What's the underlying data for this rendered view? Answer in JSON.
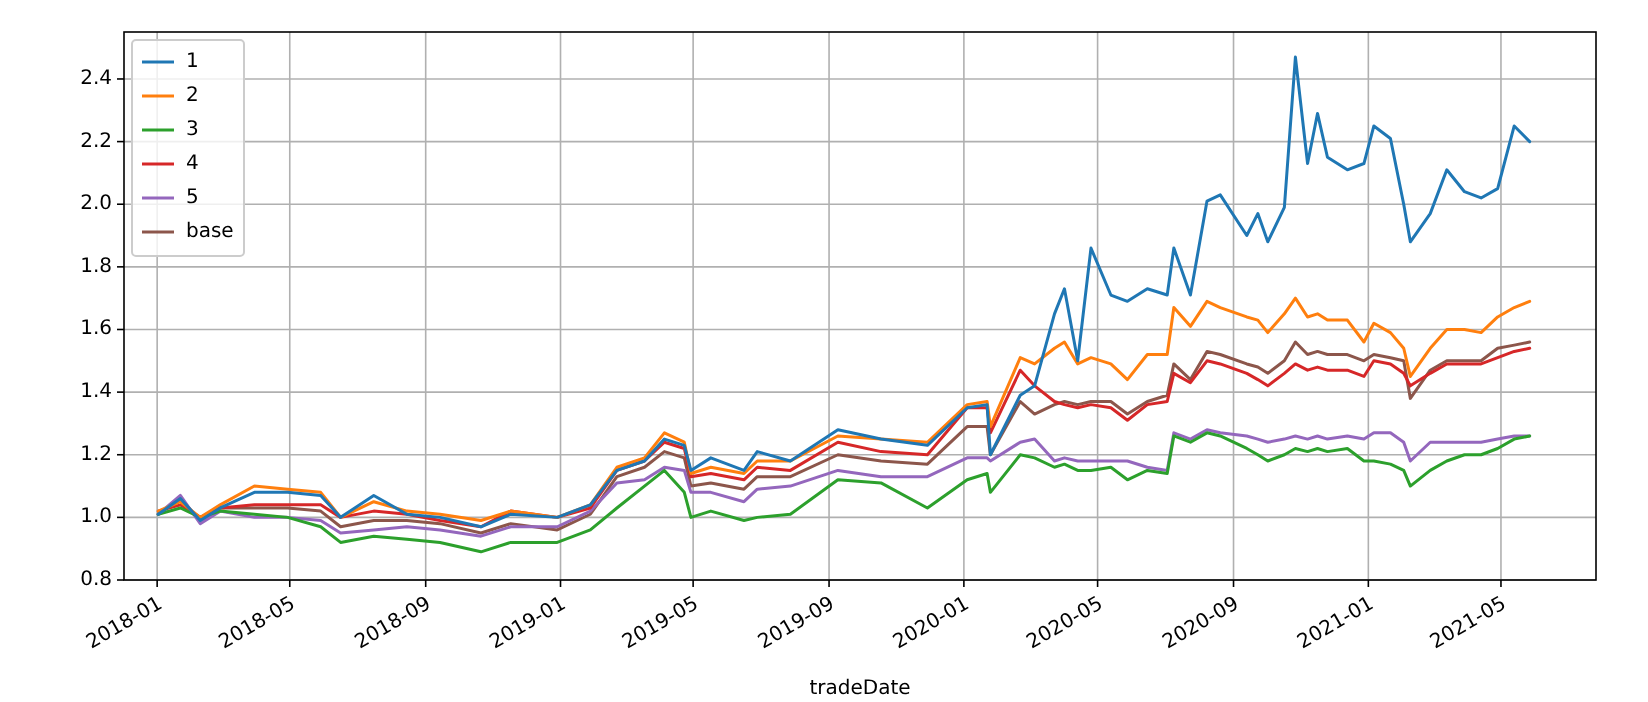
{
  "chart_data": {
    "type": "line",
    "xlabel": "tradeDate",
    "legend": "top left",
    "grid": true,
    "xlim": [
      "2017-12-02",
      "2021-07-26"
    ],
    "ylim": [
      0.8,
      2.55
    ],
    "xticks": [
      "2018-01",
      "2018-05",
      "2018-09",
      "2019-01",
      "2019-05",
      "2019-09",
      "2020-01",
      "2020-05",
      "2020-09",
      "2021-01",
      "2021-05"
    ],
    "yticks": [
      0.8,
      {
        "value": 1,
        "label": "1.0"
      },
      1.2,
      1.4,
      1.6,
      1.8,
      {
        "value": 2,
        "label": "2.0"
      },
      2.2,
      2.4
    ],
    "x": [
      "2018-01-02",
      "2018-01-22",
      "2018-02-09",
      "2018-02-27",
      "2018-03-30",
      "2018-04-29",
      "2018-05-29",
      "2018-06-16",
      "2018-07-16",
      "2018-08-15",
      "2018-09-14",
      "2018-10-21",
      "2018-11-17",
      "2018-12-29",
      "2019-01-28",
      "2019-02-21",
      "2019-03-18",
      "2019-04-05",
      "2019-04-23",
      "2019-04-29",
      "2019-05-17",
      "2019-06-16",
      "2019-06-28",
      "2019-07-28",
      "2019-09-09",
      "2019-10-18",
      "2019-11-29",
      "2020-01-04",
      "2020-01-22",
      "2020-01-25",
      "2020-02-21",
      "2020-03-05",
      "2020-03-23",
      "2020-04-01",
      "2020-04-13",
      "2020-04-25",
      "2020-05-13",
      "2020-05-28",
      "2020-06-15",
      "2020-07-03",
      "2020-07-09",
      "2020-07-24",
      "2020-08-08",
      "2020-08-20",
      "2020-09-13",
      "2020-09-23",
      "2020-10-02",
      "2020-10-17",
      "2020-10-27",
      "2020-11-07",
      "2020-11-16",
      "2020-11-25",
      "2020-12-13",
      "2020-12-28",
      "2021-01-06",
      "2021-01-21",
      "2021-02-02",
      "2021-02-08",
      "2021-02-26",
      "2021-03-13",
      "2021-03-29",
      "2021-04-13",
      "2021-04-28",
      "2021-05-13",
      "2021-05-27"
    ],
    "series": [
      {
        "name": "1",
        "color": "#1f77b4",
        "values": [
          1.01,
          1.06,
          0.99,
          1.03,
          1.08,
          1.08,
          1.07,
          1.0,
          1.07,
          1.01,
          1.0,
          0.97,
          1.01,
          1.0,
          1.04,
          1.15,
          1.18,
          1.25,
          1.23,
          1.15,
          1.19,
          1.15,
          1.21,
          1.18,
          1.28,
          1.25,
          1.23,
          1.35,
          1.36,
          1.2,
          1.39,
          1.42,
          1.65,
          1.73,
          1.5,
          1.86,
          1.71,
          1.69,
          1.73,
          1.71,
          1.86,
          1.71,
          2.01,
          2.03,
          1.9,
          1.97,
          1.88,
          1.99,
          2.47,
          2.13,
          2.29,
          2.15,
          2.11,
          2.13,
          2.25,
          2.21,
          2.0,
          1.88,
          1.97,
          2.11,
          2.04,
          2.02,
          2.05,
          2.25,
          2.2
        ]
      },
      {
        "name": "2",
        "color": "#ff7f0e",
        "values": [
          1.02,
          1.05,
          1.0,
          1.04,
          1.1,
          1.09,
          1.08,
          1.0,
          1.05,
          1.02,
          1.01,
          0.99,
          1.02,
          1.0,
          1.04,
          1.16,
          1.19,
          1.27,
          1.24,
          1.14,
          1.16,
          1.14,
          1.18,
          1.18,
          1.26,
          1.25,
          1.24,
          1.36,
          1.37,
          1.29,
          1.51,
          1.49,
          1.54,
          1.56,
          1.49,
          1.51,
          1.49,
          1.44,
          1.52,
          1.52,
          1.67,
          1.61,
          1.69,
          1.67,
          1.64,
          1.63,
          1.59,
          1.65,
          1.7,
          1.64,
          1.65,
          1.63,
          1.63,
          1.56,
          1.62,
          1.59,
          1.54,
          1.45,
          1.54,
          1.6,
          1.6,
          1.59,
          1.64,
          1.67,
          1.69
        ]
      },
      {
        "name": "3",
        "color": "#2ca02c",
        "values": [
          1.01,
          1.03,
          1.0,
          1.02,
          1.01,
          1.0,
          0.97,
          0.92,
          0.94,
          0.93,
          0.92,
          0.89,
          0.92,
          0.92,
          0.96,
          1.03,
          1.1,
          1.15,
          1.08,
          1.0,
          1.02,
          0.99,
          1.0,
          1.01,
          1.12,
          1.11,
          1.03,
          1.12,
          1.14,
          1.08,
          1.2,
          1.19,
          1.16,
          1.17,
          1.15,
          1.15,
          1.16,
          1.12,
          1.15,
          1.14,
          1.26,
          1.24,
          1.27,
          1.26,
          1.22,
          1.2,
          1.18,
          1.2,
          1.22,
          1.21,
          1.22,
          1.21,
          1.22,
          1.18,
          1.18,
          1.17,
          1.15,
          1.1,
          1.15,
          1.18,
          1.2,
          1.2,
          1.22,
          1.25,
          1.26
        ]
      },
      {
        "name": "4",
        "color": "#d62728",
        "values": [
          1.02,
          1.04,
          1.0,
          1.03,
          1.04,
          1.04,
          1.04,
          1.0,
          1.02,
          1.01,
          0.99,
          0.97,
          1.02,
          1.0,
          1.03,
          1.15,
          1.18,
          1.24,
          1.22,
          1.13,
          1.14,
          1.12,
          1.16,
          1.15,
          1.24,
          1.21,
          1.2,
          1.35,
          1.35,
          1.27,
          1.47,
          1.42,
          1.37,
          1.36,
          1.35,
          1.36,
          1.35,
          1.31,
          1.36,
          1.37,
          1.46,
          1.43,
          1.5,
          1.49,
          1.46,
          1.44,
          1.42,
          1.46,
          1.49,
          1.47,
          1.48,
          1.47,
          1.47,
          1.45,
          1.5,
          1.49,
          1.46,
          1.42,
          1.46,
          1.49,
          1.49,
          1.49,
          1.51,
          1.53,
          1.54
        ]
      },
      {
        "name": "5",
        "color": "#9467bd",
        "values": [
          1.01,
          1.07,
          0.98,
          1.02,
          1.0,
          1.0,
          0.99,
          0.95,
          0.96,
          0.97,
          0.96,
          0.94,
          0.97,
          0.97,
          1.02,
          1.11,
          1.12,
          1.16,
          1.15,
          1.08,
          1.08,
          1.05,
          1.09,
          1.1,
          1.15,
          1.13,
          1.13,
          1.19,
          1.19,
          1.18,
          1.24,
          1.25,
          1.18,
          1.19,
          1.18,
          1.18,
          1.18,
          1.18,
          1.16,
          1.15,
          1.27,
          1.25,
          1.28,
          1.27,
          1.26,
          1.25,
          1.24,
          1.25,
          1.26,
          1.25,
          1.26,
          1.25,
          1.26,
          1.25,
          1.27,
          1.27,
          1.24,
          1.18,
          1.24,
          1.24,
          1.24,
          1.24,
          1.25,
          1.26,
          1.26
        ]
      },
      {
        "name": "base",
        "color": "#8c564b",
        "values": [
          1.01,
          1.06,
          0.99,
          1.03,
          1.03,
          1.03,
          1.02,
          0.97,
          0.99,
          0.99,
          0.98,
          0.95,
          0.98,
          0.96,
          1.01,
          1.13,
          1.16,
          1.21,
          1.19,
          1.1,
          1.11,
          1.09,
          1.13,
          1.13,
          1.2,
          1.18,
          1.17,
          1.29,
          1.29,
          1.2,
          1.37,
          1.33,
          1.36,
          1.37,
          1.36,
          1.37,
          1.37,
          1.33,
          1.37,
          1.39,
          1.49,
          1.44,
          1.53,
          1.52,
          1.49,
          1.48,
          1.46,
          1.5,
          1.56,
          1.52,
          1.53,
          1.52,
          1.52,
          1.5,
          1.52,
          1.51,
          1.5,
          1.38,
          1.47,
          1.5,
          1.5,
          1.5,
          1.54,
          1.55,
          1.56
        ]
      }
    ]
  }
}
